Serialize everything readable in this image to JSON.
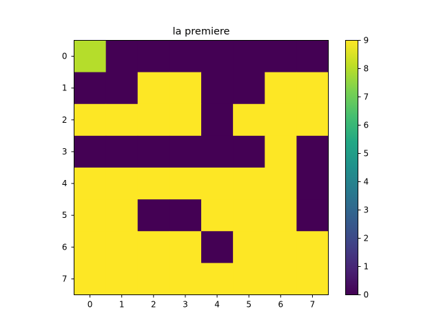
{
  "chart_data": {
    "type": "heatmap",
    "title": "la premiere",
    "xlabel": "",
    "ylabel": "",
    "x_ticks": [
      "0",
      "1",
      "2",
      "3",
      "4",
      "5",
      "6",
      "7"
    ],
    "y_ticks": [
      "0",
      "1",
      "2",
      "3",
      "4",
      "5",
      "6",
      "7"
    ],
    "values": [
      [
        8,
        0,
        0,
        0,
        0,
        0,
        0,
        0
      ],
      [
        0,
        0,
        9,
        9,
        0,
        0,
        9,
        9
      ],
      [
        9,
        9,
        9,
        9,
        0,
        9,
        9,
        9
      ],
      [
        0,
        0,
        0,
        0,
        0,
        0,
        9,
        0
      ],
      [
        9,
        9,
        9,
        9,
        9,
        9,
        9,
        0
      ],
      [
        9,
        9,
        0,
        0,
        9,
        9,
        9,
        0
      ],
      [
        9,
        9,
        9,
        9,
        0,
        9,
        9,
        9
      ],
      [
        9,
        9,
        9,
        9,
        9,
        9,
        9,
        9
      ]
    ],
    "vmin": 0,
    "vmax": 9,
    "colormap": "viridis",
    "colorbar_ticks": [
      "0",
      "1",
      "2",
      "3",
      "4",
      "5",
      "6",
      "7",
      "8",
      "9"
    ],
    "grid": false
  }
}
